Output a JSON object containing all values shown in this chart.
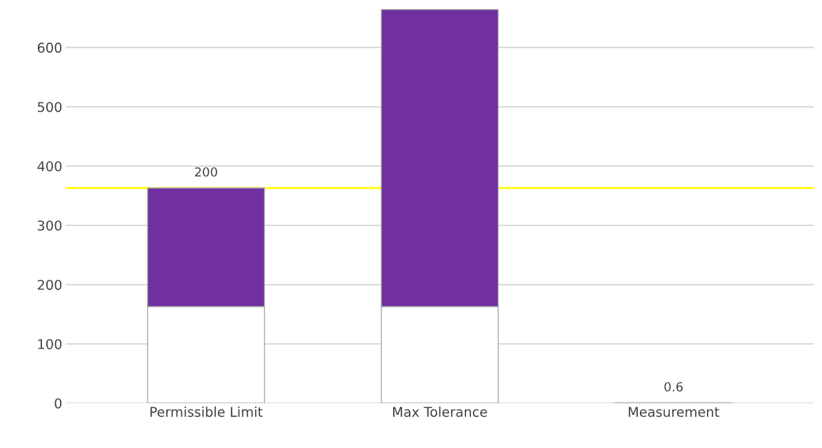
{
  "chart_data": {
    "type": "bar",
    "stacked": true,
    "categories": [
      "Permissible Limit",
      "Max Tolerance",
      "Measurement"
    ],
    "series": [
      {
        "color": "#ffffff",
        "values": [
          163,
          163,
          null
        ]
      },
      {
        "colors": [
          "#7030a0",
          "#7030a0",
          "#d9d9d9"
        ],
        "values": [
          200,
          501,
          0.6
        ],
        "value_labels": [
          "200",
          null,
          "0.6"
        ]
      }
    ],
    "ylim": [
      0,
      665
    ],
    "yticks": [
      0,
      100,
      200,
      300,
      400,
      500,
      600
    ],
    "grid": "y",
    "ref_lines": [
      {
        "axis": "y",
        "value": 363,
        "color": "#ffff00"
      }
    ]
  }
}
